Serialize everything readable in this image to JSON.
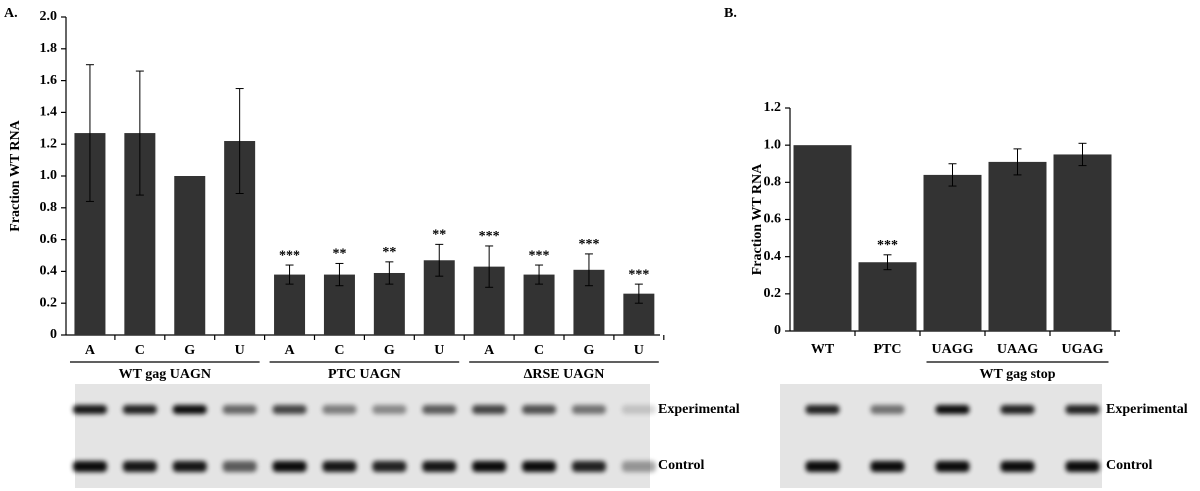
{
  "chart_data": [
    {
      "type": "bar",
      "panel_label": "A.",
      "y_label": "Fraction WT RNA",
      "categories": [
        "A",
        "C",
        "G",
        "U",
        "A",
        "C",
        "G",
        "U",
        "A",
        "C",
        "G",
        "U"
      ],
      "groups": [
        "WT gag UAGN",
        "PTC UAGN",
        "ΔRSE UAGN"
      ],
      "values": [
        1.27,
        1.27,
        1.0,
        1.22,
        0.38,
        0.38,
        0.39,
        0.47,
        0.43,
        0.38,
        0.41,
        0.26
      ],
      "errors": [
        0.43,
        0.39,
        null,
        0.33,
        0.06,
        0.07,
        0.07,
        0.1,
        0.13,
        0.06,
        0.1,
        0.06
      ],
      "significance": [
        null,
        null,
        null,
        null,
        "***",
        "**",
        "**",
        "**",
        "***",
        "***",
        "***",
        "***"
      ],
      "color": "#333333",
      "ylim": [
        0,
        2.0
      ],
      "yticks": [
        0,
        0.2,
        0.4,
        0.6,
        0.8,
        {
          "value": 1.0,
          "label": "1.0"
        },
        1.2,
        1.4,
        1.6,
        1.8,
        {
          "value": 2.0,
          "label": "2.0"
        }
      ],
      "gel_labels": [
        "Experimental",
        "Control"
      ]
    },
    {
      "type": "bar",
      "panel_label": "B.",
      "y_label": "Fraction WT RNA",
      "categories": [
        "WT",
        "PTC",
        "UAGG",
        "UAAG",
        "UGAG"
      ],
      "groups": [
        "WT gag stop"
      ],
      "values": [
        1.0,
        0.37,
        0.84,
        0.91,
        0.95
      ],
      "errors": [
        null,
        0.04,
        0.06,
        0.07,
        0.06
      ],
      "significance": [
        null,
        "***",
        null,
        null,
        null
      ],
      "color": "#333333",
      "ylim": [
        0,
        1.2
      ],
      "yticks": [
        0,
        0.2,
        0.4,
        0.6,
        0.8,
        {
          "value": 1.0,
          "label": "1.0"
        },
        1.2
      ],
      "gel_labels": [
        "Experimental",
        "Control"
      ]
    }
  ]
}
